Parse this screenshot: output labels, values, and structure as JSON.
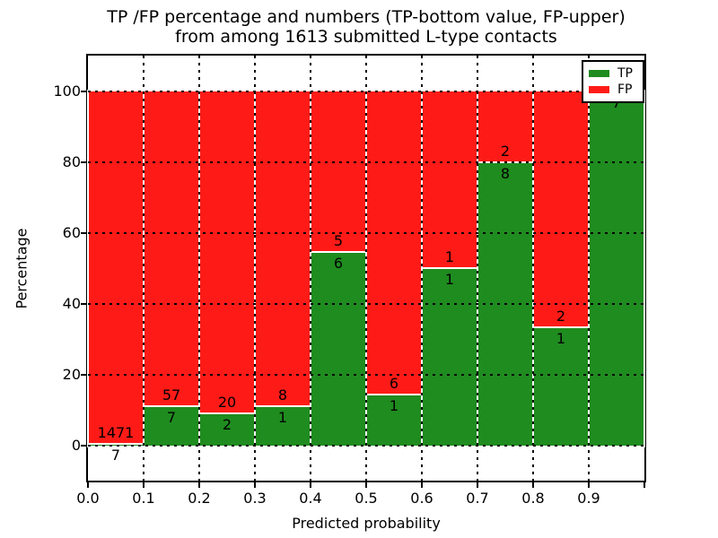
{
  "title": {
    "line1": "TP /FP percentage and numbers (TP-bottom value, FP-upper)",
    "line2": "from among 1613 submitted L-type contacts"
  },
  "axes": {
    "xlabel": "Predicted probability",
    "ylabel": "Percentage",
    "x_tick_labels": [
      "0.0",
      "0.1",
      "0.2",
      "0.3",
      "0.4",
      "0.5",
      "0.6",
      "0.7",
      "0.8",
      "0.9"
    ],
    "y_tick_labels": [
      "0",
      "20",
      "40",
      "60",
      "80",
      "100"
    ],
    "y_tick_values": [
      0,
      20,
      40,
      60,
      80,
      100
    ]
  },
  "legend": {
    "items": [
      {
        "label": "TP",
        "color": "#1f8c1f"
      },
      {
        "label": "FP",
        "color": "#fe1b17"
      }
    ]
  },
  "chart_data": {
    "type": "bar",
    "stacked": true,
    "normalized_to_percent": true,
    "title": "TP /FP percentage and numbers (TP-bottom value, FP-upper) from among 1613 submitted L-type contacts",
    "xlabel": "Predicted probability",
    "ylabel": "Percentage",
    "xlim": [
      0.0,
      1.0
    ],
    "ylim": [
      -10,
      110
    ],
    "bin_width": 0.1,
    "bin_edges": [
      0.0,
      0.1,
      0.2,
      0.3,
      0.4,
      0.5,
      0.6,
      0.7,
      0.8,
      0.9,
      1.0
    ],
    "categories": [
      "0.0-0.1",
      "0.1-0.2",
      "0.2-0.3",
      "0.3-0.4",
      "0.4-0.5",
      "0.5-0.6",
      "0.6-0.7",
      "0.7-0.8",
      "0.8-0.9",
      "0.9-1.0"
    ],
    "series": [
      {
        "name": "TP",
        "color": "#1f8c1f",
        "counts": [
          7,
          7,
          2,
          1,
          6,
          1,
          1,
          8,
          1,
          7
        ]
      },
      {
        "name": "FP",
        "color": "#fe1b17",
        "counts": [
          1471,
          57,
          20,
          8,
          5,
          6,
          1,
          2,
          2,
          0
        ]
      }
    ],
    "tp_percent": [
      0.47,
      10.94,
      9.09,
      11.11,
      54.55,
      14.29,
      50.0,
      80.0,
      33.33,
      100.0
    ],
    "total_contacts": 1613,
    "grid": "dashed",
    "legend_position": "upper right"
  },
  "colors": {
    "tp_green": "#1f8c1f",
    "fp_red": "#fe1b17",
    "background": "#ffffff",
    "bar_edge": "#ffffff",
    "grid_line": "#000000"
  }
}
